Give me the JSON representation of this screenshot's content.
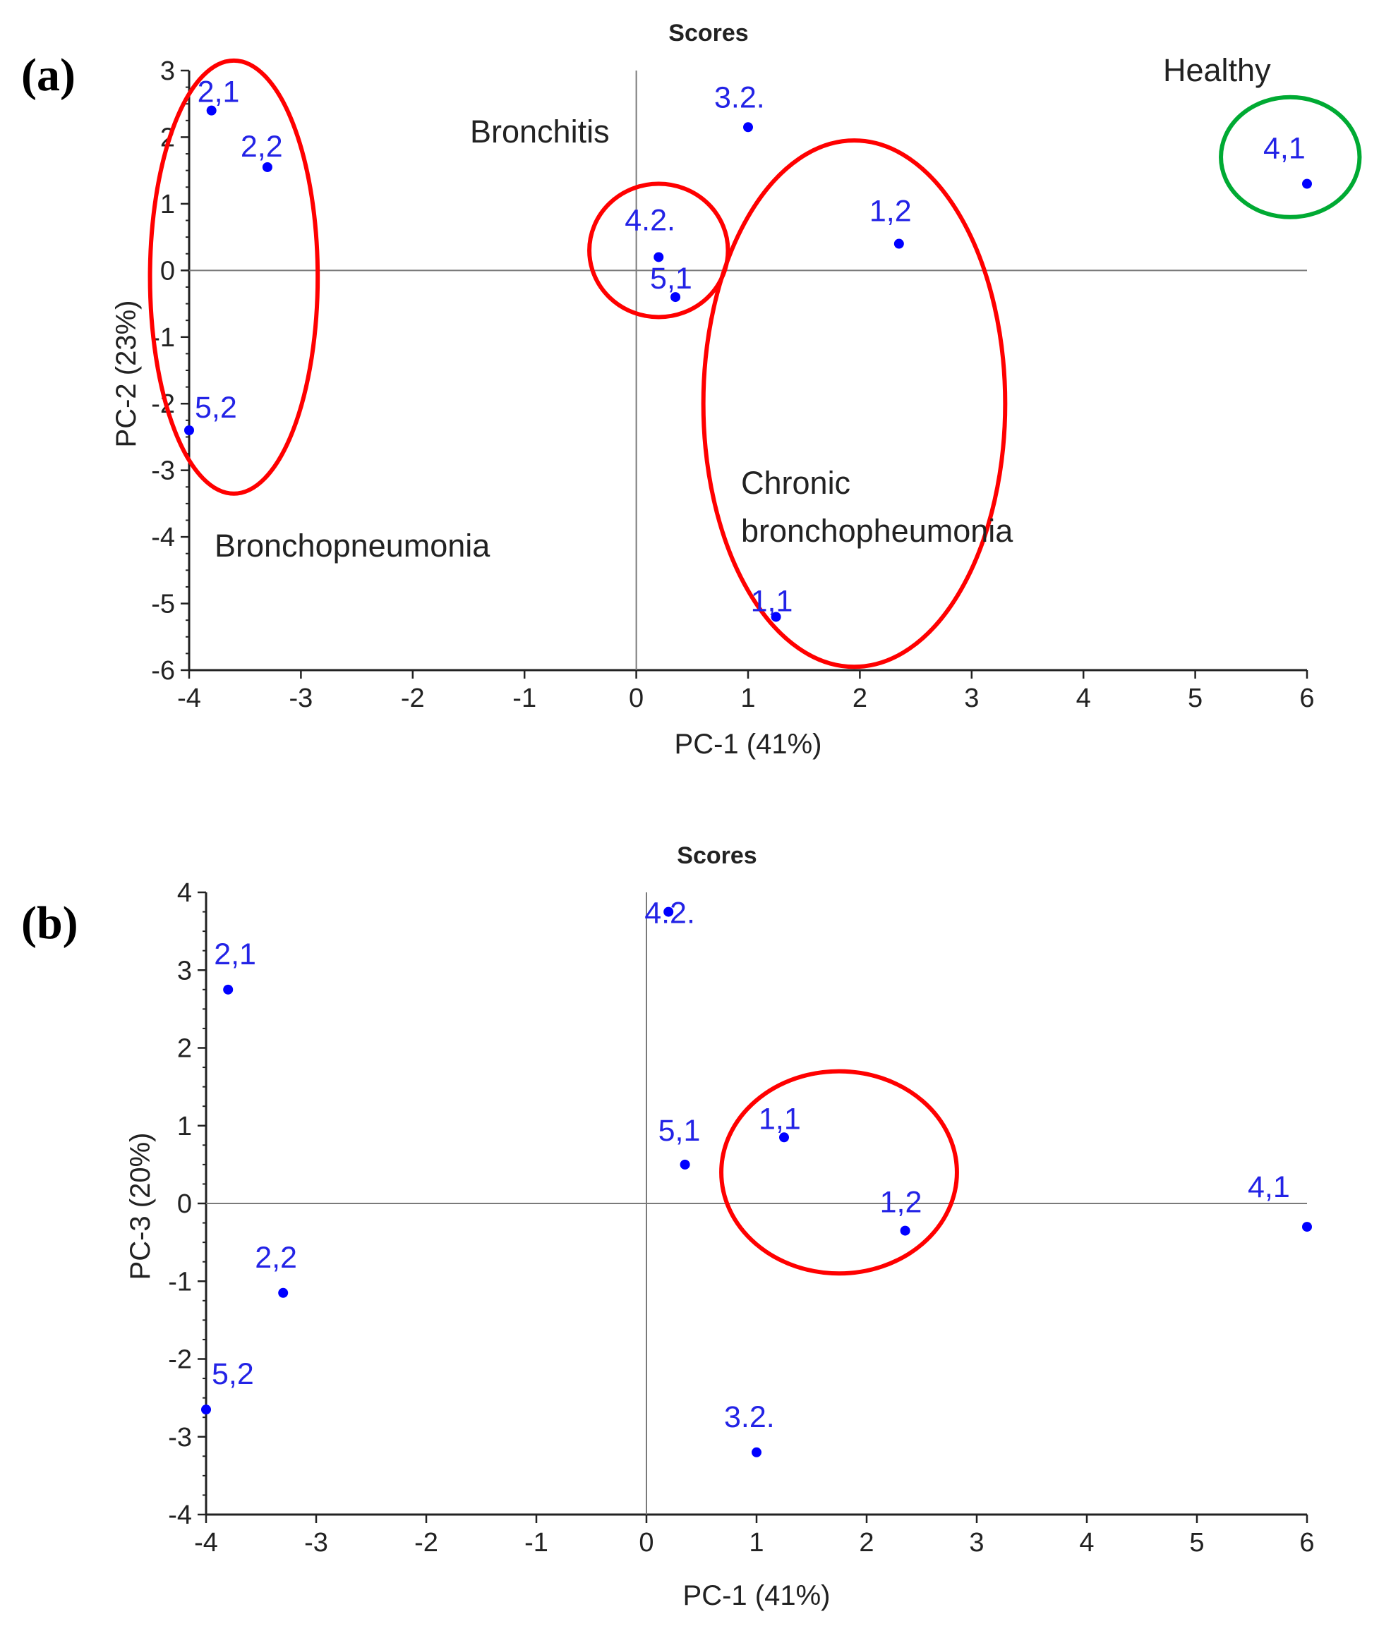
{
  "chart_data": [
    {
      "type": "scatter",
      "panel_label": "(a)",
      "title": "Scores",
      "xlabel": "PC-1 (41%)",
      "ylabel": "PC-2 (23%)",
      "xlim": [
        -4,
        6
      ],
      "ylim": [
        -6,
        3
      ],
      "xticks": [
        "-4",
        "-3",
        "-2",
        "-1",
        "0",
        "1",
        "2",
        "3",
        "4",
        "5",
        "6"
      ],
      "yticks": [
        "3",
        "2",
        "1",
        "0",
        "-1",
        "-2",
        "-3",
        "-4",
        "-5",
        "-6"
      ],
      "point_color": "#0000ff",
      "points": [
        {
          "label": "2,1",
          "x": -3.8,
          "y": 2.4
        },
        {
          "label": "2,2",
          "x": -3.3,
          "y": 1.55
        },
        {
          "label": "5,2",
          "x": -4.0,
          "y": -2.4
        },
        {
          "label": "4.2.",
          "x": 0.2,
          "y": 0.2
        },
        {
          "label": "5,1",
          "x": 0.35,
          "y": -0.4
        },
        {
          "label": "3.2.",
          "x": 1.0,
          "y": 2.15
        },
        {
          "label": "1,2",
          "x": 2.35,
          "y": 0.4
        },
        {
          "label": "1,1",
          "x": 1.25,
          "y": -5.2
        },
        {
          "label": "4,1",
          "x": 6.0,
          "y": 1.3
        }
      ],
      "annotations": [
        {
          "text": "Healthy"
        },
        {
          "text": "Bronchitis"
        },
        {
          "text": "Bronchopneumonia"
        },
        {
          "text": "Chronic"
        },
        {
          "text": "bronchopheumonia"
        }
      ],
      "groups": [
        {
          "name": "Bronchopneumonia",
          "color": "#ff0000",
          "cx": -3.6,
          "cy": -0.1,
          "rx": 0.75,
          "ry": 3.25
        },
        {
          "name": "Bronchitis",
          "color": "#ff0000",
          "cx": 0.2,
          "cy": 0.3,
          "rx": 0.62,
          "ry": 1.0
        },
        {
          "name": "Chronic bronchopheumonia",
          "color": "#ff0000",
          "cx": 1.95,
          "cy": -2.0,
          "rx": 1.35,
          "ry": 3.95
        },
        {
          "name": "Healthy",
          "color": "#00aa33",
          "cx": 5.85,
          "cy": 1.7,
          "rx": 0.62,
          "ry": 0.9
        }
      ]
    },
    {
      "type": "scatter",
      "panel_label": "(b)",
      "title": "Scores",
      "xlabel": "PC-1 (41%)",
      "ylabel": "PC-3 (20%)",
      "xlim": [
        -4,
        6
      ],
      "ylim": [
        -4,
        4
      ],
      "xticks": [
        "-4",
        "-3",
        "-2",
        "-1",
        "0",
        "1",
        "2",
        "3",
        "4",
        "5",
        "6"
      ],
      "yticks": [
        "4",
        "3",
        "2",
        "1",
        "0",
        "-1",
        "-2",
        "-3",
        "-4"
      ],
      "point_color": "#0000ff",
      "points": [
        {
          "label": "2,1",
          "x": -3.8,
          "y": 2.75
        },
        {
          "label": "2,2",
          "x": -3.3,
          "y": -1.15
        },
        {
          "label": "5,2",
          "x": -4.0,
          "y": -2.65
        },
        {
          "label": "4.2.",
          "x": 0.2,
          "y": 3.75
        },
        {
          "label": "5,1",
          "x": 0.35,
          "y": 0.5
        },
        {
          "label": "1,1",
          "x": 1.25,
          "y": 0.85
        },
        {
          "label": "1,2",
          "x": 2.35,
          "y": -0.35
        },
        {
          "label": "3.2.",
          "x": 1.0,
          "y": -3.2
        },
        {
          "label": "4,1",
          "x": 6.0,
          "y": -0.3
        }
      ],
      "annotations": [],
      "groups": [
        {
          "name": "cluster",
          "color": "#ff0000",
          "cx": 1.75,
          "cy": 0.4,
          "rx": 1.07,
          "ry": 1.3
        }
      ]
    }
  ]
}
